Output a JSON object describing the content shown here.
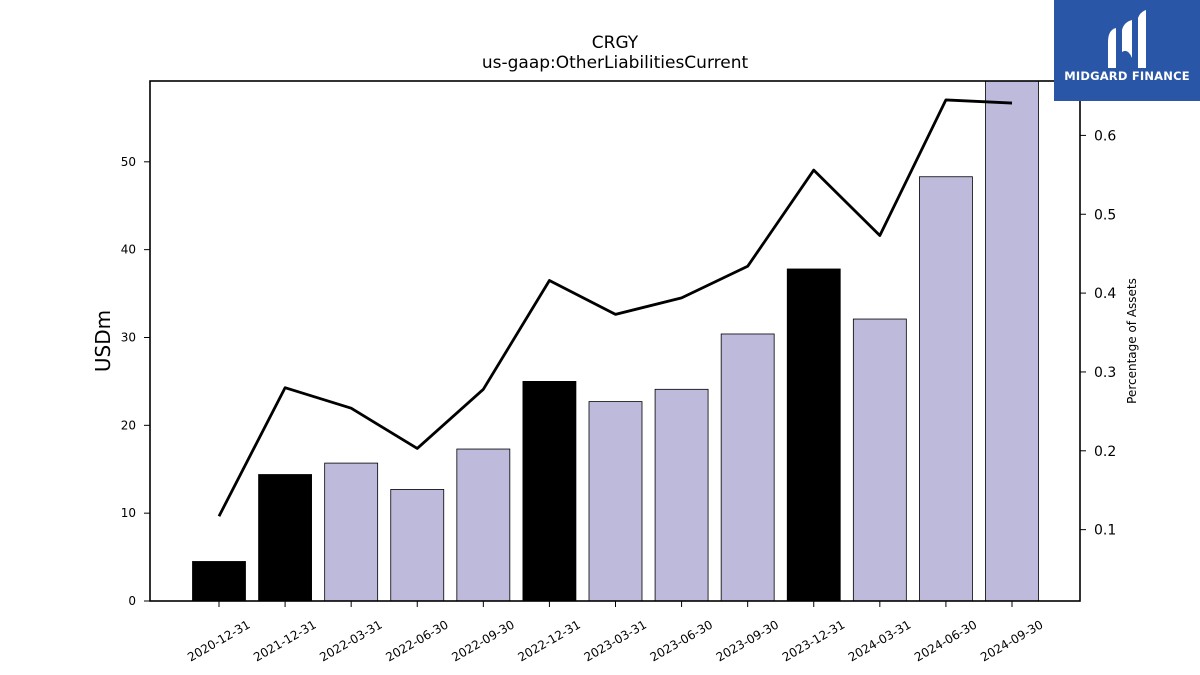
{
  "chart_data": {
    "type": "bar",
    "title": "CRGY",
    "subtitle": "us-gaap:OtherLiabilitiesCurrent",
    "ylabel": "USDm",
    "ylabel_right": "Percentage of Assets",
    "categories": [
      "2020-12-31",
      "2021-12-31",
      "2022-03-31",
      "2022-06-30",
      "2022-09-30",
      "2022-12-31",
      "2023-03-31",
      "2023-06-30",
      "2023-09-30",
      "2023-12-31",
      "2024-03-31",
      "2024-06-30",
      "2024-09-30"
    ],
    "series": [
      {
        "type": "bar",
        "axis": "left",
        "values": [
          4.5,
          14.4,
          15.7,
          12.7,
          17.3,
          25.0,
          22.7,
          24.1,
          30.4,
          37.8,
          32.1,
          48.3,
          59.5
        ],
        "annual_flags": [
          true,
          true,
          false,
          false,
          false,
          true,
          false,
          false,
          false,
          true,
          false,
          false,
          false
        ]
      },
      {
        "type": "line",
        "axis": "right",
        "values": [
          0.117,
          0.28,
          0.254,
          0.203,
          0.278,
          0.416,
          0.373,
          0.394,
          0.434,
          0.556,
          0.473,
          0.645,
          0.641
        ]
      }
    ],
    "ylim": [
      0,
      59.2
    ],
    "y_ticks": [
      0,
      10,
      20,
      30,
      40,
      50
    ],
    "ylim_right": [
      0.0095,
      0.669
    ],
    "y_ticks_right": [
      "0.1",
      "0.2",
      "0.3",
      "0.4",
      "0.5",
      "0.6"
    ],
    "colors": {
      "annual_bar": "#000000",
      "quarter_bar": "#bdbadb",
      "line": "#000000"
    },
    "grid": false,
    "legend": "none"
  },
  "brand": {
    "logo_text": "MIDGARD FINANCE",
    "logo_color": "#2a56a8"
  }
}
